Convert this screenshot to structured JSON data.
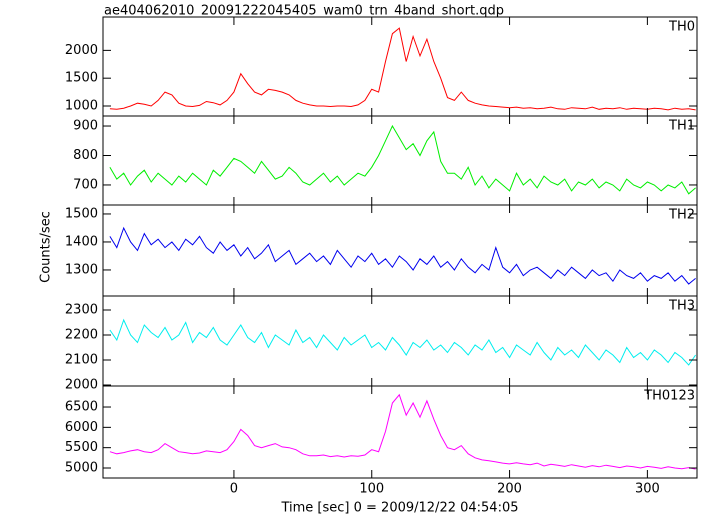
{
  "chart_data": {
    "type": "line",
    "title": "ae404062010_20091222045405_wam0_trn_4band_short.qdp",
    "xlabel": "Time [sec] 0 = 2009/12/22 04:54:05",
    "ylabel": "Counts/sec",
    "xlim": [
      -95,
      336
    ],
    "xticks": [
      0,
      100,
      200,
      300
    ],
    "x": [
      -90,
      -85,
      -80,
      -75,
      -70,
      -65,
      -60,
      -55,
      -50,
      -45,
      -40,
      -35,
      -30,
      -25,
      -20,
      -15,
      -10,
      -5,
      0,
      5,
      10,
      15,
      20,
      25,
      30,
      35,
      40,
      45,
      50,
      55,
      60,
      65,
      70,
      75,
      80,
      85,
      90,
      95,
      100,
      105,
      110,
      115,
      120,
      125,
      130,
      135,
      140,
      145,
      150,
      155,
      160,
      165,
      170,
      175,
      180,
      185,
      190,
      195,
      200,
      205,
      210,
      215,
      220,
      225,
      230,
      235,
      240,
      245,
      250,
      255,
      260,
      265,
      270,
      275,
      280,
      285,
      290,
      295,
      300,
      305,
      310,
      315,
      320,
      325,
      330,
      335
    ],
    "series": [
      {
        "name": "TH0",
        "color": "#ff0000",
        "ylim": [
          820,
          2600
        ],
        "yticks": [
          1000,
          1500,
          2000
        ],
        "values": [
          950,
          940,
          960,
          1000,
          1050,
          1030,
          1000,
          1100,
          1250,
          1200,
          1050,
          1000,
          990,
          1010,
          1080,
          1060,
          1020,
          1100,
          1250,
          1580,
          1400,
          1250,
          1200,
          1300,
          1280,
          1250,
          1200,
          1100,
          1050,
          1020,
          1000,
          1000,
          990,
          1000,
          1000,
          990,
          1020,
          1100,
          1300,
          1250,
          1800,
          2300,
          2400,
          1800,
          2250,
          1900,
          2200,
          1800,
          1500,
          1150,
          1100,
          1250,
          1100,
          1050,
          1020,
          1000,
          990,
          980,
          970,
          980,
          960,
          970,
          950,
          960,
          980,
          950,
          940,
          970,
          960,
          950,
          980,
          940,
          960,
          950,
          970,
          940,
          960,
          950,
          940,
          960,
          950,
          930,
          960,
          940,
          950,
          930
        ]
      },
      {
        "name": "TH1",
        "color": "#00ee00",
        "ylim": [
          632,
          934
        ],
        "yticks": [
          700,
          800,
          900
        ],
        "values": [
          760,
          720,
          740,
          700,
          730,
          750,
          710,
          740,
          720,
          700,
          730,
          710,
          740,
          720,
          700,
          750,
          730,
          760,
          790,
          780,
          760,
          740,
          780,
          750,
          720,
          730,
          760,
          740,
          710,
          700,
          720,
          740,
          710,
          730,
          700,
          720,
          740,
          730,
          760,
          800,
          850,
          900,
          860,
          820,
          840,
          800,
          850,
          880,
          780,
          740,
          740,
          720,
          760,
          700,
          730,
          690,
          720,
          700,
          680,
          740,
          700,
          720,
          690,
          730,
          710,
          700,
          720,
          680,
          710,
          700,
          720,
          690,
          710,
          700,
          680,
          720,
          700,
          690,
          710,
          700,
          680,
          700,
          690,
          710,
          670,
          690
        ]
      },
      {
        "name": "TH2",
        "color": "#0000ee",
        "ylim": [
          1207,
          1532
        ],
        "yticks": [
          1300,
          1400,
          1500
        ],
        "values": [
          1420,
          1380,
          1450,
          1400,
          1370,
          1430,
          1390,
          1410,
          1380,
          1400,
          1370,
          1410,
          1390,
          1420,
          1380,
          1360,
          1400,
          1370,
          1390,
          1350,
          1380,
          1340,
          1360,
          1390,
          1330,
          1350,
          1370,
          1320,
          1340,
          1360,
          1330,
          1350,
          1320,
          1370,
          1340,
          1310,
          1350,
          1330,
          1360,
          1320,
          1340,
          1310,
          1350,
          1330,
          1300,
          1340,
          1320,
          1350,
          1310,
          1330,
          1300,
          1340,
          1310,
          1290,
          1320,
          1300,
          1380,
          1310,
          1290,
          1320,
          1280,
          1300,
          1310,
          1290,
          1270,
          1300,
          1280,
          1310,
          1290,
          1270,
          1300,
          1280,
          1290,
          1260,
          1300,
          1280,
          1270,
          1290,
          1260,
          1280,
          1270,
          1290,
          1260,
          1280,
          1250,
          1270
        ]
      },
      {
        "name": "TH3",
        "color": "#00eeee",
        "ylim": [
          1996,
          2356
        ],
        "yticks": [
          2000,
          2100,
          2200,
          2300
        ],
        "values": [
          2220,
          2180,
          2260,
          2200,
          2170,
          2240,
          2210,
          2190,
          2230,
          2180,
          2200,
          2250,
          2170,
          2210,
          2190,
          2230,
          2180,
          2160,
          2200,
          2240,
          2190,
          2170,
          2210,
          2150,
          2200,
          2180,
          2160,
          2220,
          2170,
          2190,
          2150,
          2200,
          2170,
          2140,
          2190,
          2160,
          2180,
          2200,
          2150,
          2170,
          2140,
          2190,
          2160,
          2120,
          2170,
          2150,
          2180,
          2140,
          2160,
          2130,
          2170,
          2150,
          2120,
          2160,
          2140,
          2180,
          2130,
          2150,
          2110,
          2160,
          2140,
          2120,
          2170,
          2130,
          2100,
          2150,
          2120,
          2140,
          2110,
          2160,
          2130,
          2100,
          2140,
          2120,
          2090,
          2150,
          2110,
          2130,
          2100,
          2140,
          2120,
          2090,
          2130,
          2110,
          2080,
          2120
        ]
      },
      {
        "name": "TH0123",
        "color": "#ff00ff",
        "ylim": [
          4754,
          7017
        ],
        "yticks": [
          5000,
          5500,
          6000,
          6500
        ],
        "values": [
          5400,
          5350,
          5380,
          5420,
          5450,
          5400,
          5380,
          5450,
          5600,
          5500,
          5400,
          5380,
          5350,
          5370,
          5420,
          5400,
          5380,
          5450,
          5650,
          5950,
          5800,
          5550,
          5500,
          5550,
          5600,
          5520,
          5500,
          5450,
          5350,
          5300,
          5300,
          5320,
          5280,
          5300,
          5270,
          5300,
          5290,
          5320,
          5450,
          5400,
          5900,
          6600,
          6800,
          6300,
          6600,
          6250,
          6650,
          6200,
          5800,
          5500,
          5450,
          5550,
          5350,
          5250,
          5200,
          5180,
          5150,
          5120,
          5100,
          5130,
          5100,
          5080,
          5120,
          5050,
          5090,
          5070,
          5040,
          5080,
          5050,
          5020,
          5060,
          5030,
          5070,
          5040,
          5010,
          5050,
          5030,
          5000,
          5040,
          5020,
          4990,
          5030,
          5000,
          4980,
          5010,
          4970
        ]
      }
    ]
  }
}
